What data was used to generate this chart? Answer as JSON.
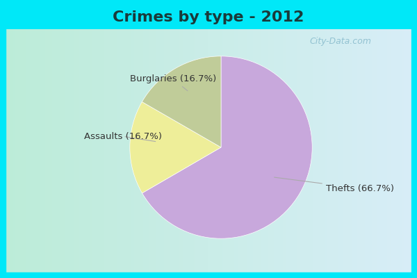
{
  "title": "Crimes by type - 2012",
  "slices": [
    {
      "label": "Thefts",
      "pct": 66.7,
      "color": "#C8A8DC"
    },
    {
      "label": "Burglaries",
      "pct": 16.7,
      "color": "#EEEE99"
    },
    {
      "label": "Assaults",
      "pct": 16.7,
      "color": "#C0CC99"
    }
  ],
  "title_fontsize": 16,
  "label_fontsize": 9.5,
  "bg_top": "#00E8F8",
  "bg_left": "#BCECD8",
  "bg_right": "#D8EEF8",
  "watermark": "City-Data.com",
  "border_color": "#00E8F8",
  "border_width": 8
}
